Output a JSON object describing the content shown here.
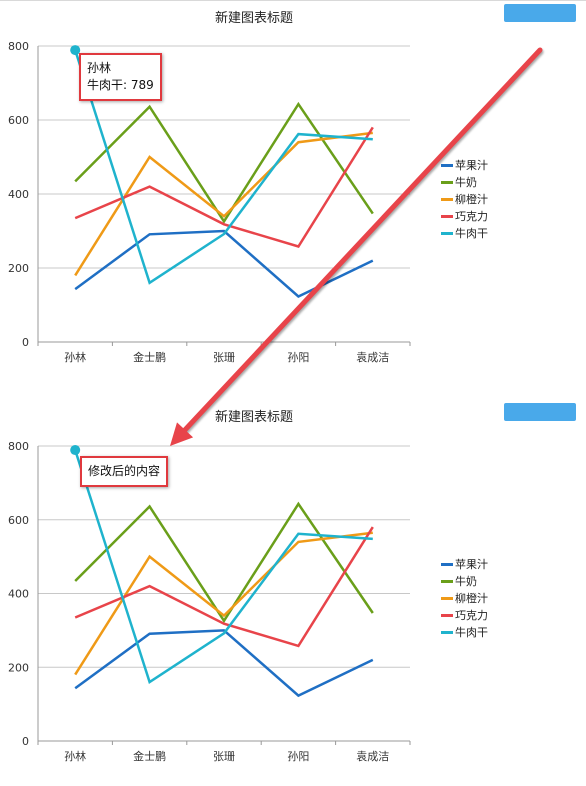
{
  "chart_data": [
    {
      "type": "line",
      "title": "新建图表标题",
      "categories": [
        "孙林",
        "金士鹏",
        "张珊",
        "孙阳",
        "袁成洁"
      ],
      "ylim": [
        0,
        800
      ],
      "yticks": [
        0,
        200,
        400,
        600,
        800
      ],
      "grid": true,
      "legend_position": "right",
      "series": [
        {
          "name": "苹果汁",
          "values": [
            143,
            291,
            300,
            123,
            220
          ],
          "color": "#1f6fc4"
        },
        {
          "name": "牛奶",
          "values": [
            434,
            636,
            326,
            643,
            347
          ],
          "color": "#6a9f1a"
        },
        {
          "name": "柳橙汁",
          "values": [
            180,
            500,
            340,
            540,
            565
          ],
          "color": "#ef9a17"
        },
        {
          "name": "巧克力",
          "values": [
            335,
            420,
            318,
            258,
            580
          ],
          "color": "#e8444a"
        },
        {
          "name": "牛肉干",
          "values": [
            789,
            160,
            292,
            562,
            548
          ],
          "color": "#1fb3cd"
        }
      ],
      "tooltip": {
        "category": "孙林",
        "series": "牛肉干",
        "value": 789,
        "line1": "孙林",
        "line2": "牛肉干: 789"
      }
    },
    {
      "type": "line",
      "title": "新建图表标题",
      "categories": [
        "孙林",
        "金士鹏",
        "张珊",
        "孙阳",
        "袁成洁"
      ],
      "ylim": [
        0,
        800
      ],
      "yticks": [
        0,
        200,
        400,
        600,
        800
      ],
      "grid": true,
      "legend_position": "right",
      "series": [
        {
          "name": "苹果汁",
          "values": [
            143,
            291,
            300,
            123,
            220
          ],
          "color": "#1f6fc4"
        },
        {
          "name": "牛奶",
          "values": [
            434,
            636,
            326,
            643,
            347
          ],
          "color": "#6a9f1a"
        },
        {
          "name": "柳橙汁",
          "values": [
            180,
            500,
            340,
            540,
            565
          ],
          "color": "#ef9a17"
        },
        {
          "name": "巧克力",
          "values": [
            335,
            420,
            318,
            258,
            580
          ],
          "color": "#e8444a"
        },
        {
          "name": "牛肉干",
          "values": [
            789,
            160,
            292,
            562,
            548
          ],
          "color": "#1fb3cd"
        }
      ],
      "tooltip": {
        "category": "孙林",
        "series": "牛肉干",
        "value": 789,
        "line1": "修改后的内容"
      }
    }
  ],
  "annotation": {
    "color": "#e8444a"
  }
}
